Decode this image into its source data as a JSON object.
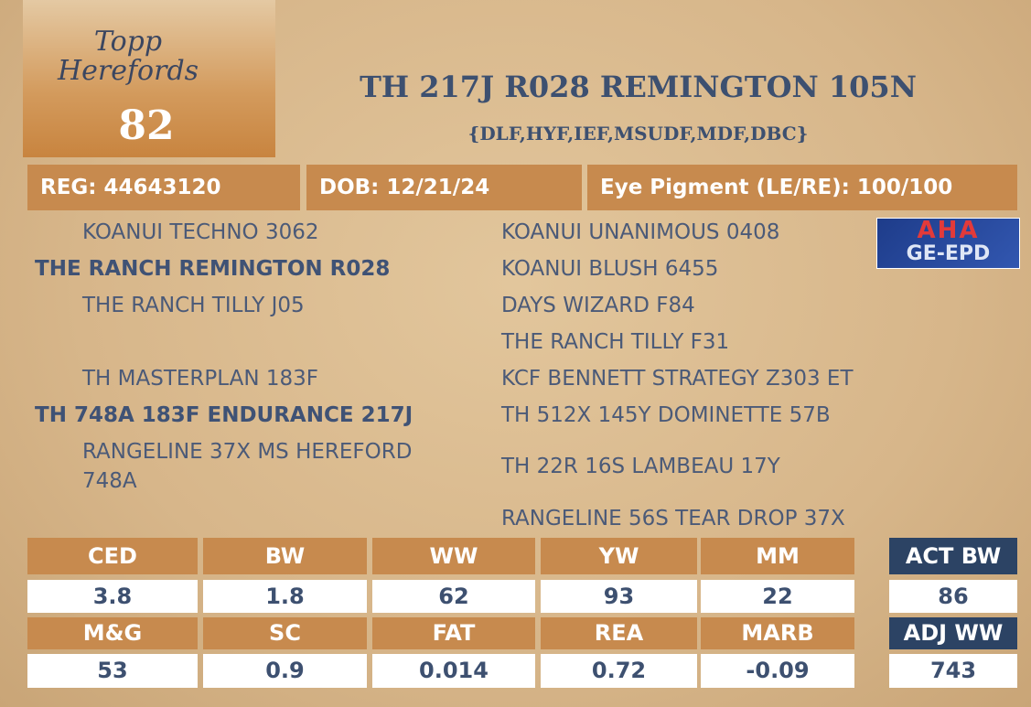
{
  "logo": {
    "text": "Topp Herefords"
  },
  "lot": 82,
  "header": {
    "title": "TH 217J R028 REMINGTON 105N",
    "designations": "{DLF,HYF,IEF,MSUDF,MDF,DBC}"
  },
  "info": [
    "REG: 44643120",
    "DOB: 12/21/24",
    "Eye Pigment (LE/RE): 100/100"
  ],
  "badge": {
    "top": "AHA",
    "bottom": "GE-EPD"
  },
  "pedigree": {
    "left": [
      "KOANUI TECHNO 3062",
      "THE RANCH REMINGTON R028",
      "THE RANCH TILLY J05",
      "TH MASTERPLAN 183F",
      "TH 748A 183F ENDURANCE 217J",
      "RANGELINE 37X MS HEREFORD 748A"
    ],
    "right": [
      "KOANUI UNANIMOUS 0408",
      "KOANUI BLUSH 6455",
      "DAYS WIZARD F84",
      "THE RANCH TILLY F31",
      "KCF BENNETT STRATEGY Z303 ET",
      "TH 512X 145Y DOMINETTE 57B",
      "TH 22R 16S LAMBEAU 17Y",
      "RANGELINE 56S TEAR DROP 37X"
    ]
  },
  "epds": [
    {
      "traits": [
        "CED",
        "BW",
        "WW",
        "YW",
        "MM"
      ],
      "values": [
        3.8,
        1.8,
        62,
        93,
        22
      ]
    },
    {
      "traits": [
        "M&G",
        "SC",
        "FAT",
        "REA",
        "MARB"
      ],
      "values": [
        53,
        0.9,
        0.014,
        0.72,
        -0.09
      ]
    }
  ],
  "weights": [
    {
      "label": "ACT BW",
      "value": 86
    },
    {
      "label": "ADJ WW",
      "value": 743
    }
  ]
}
